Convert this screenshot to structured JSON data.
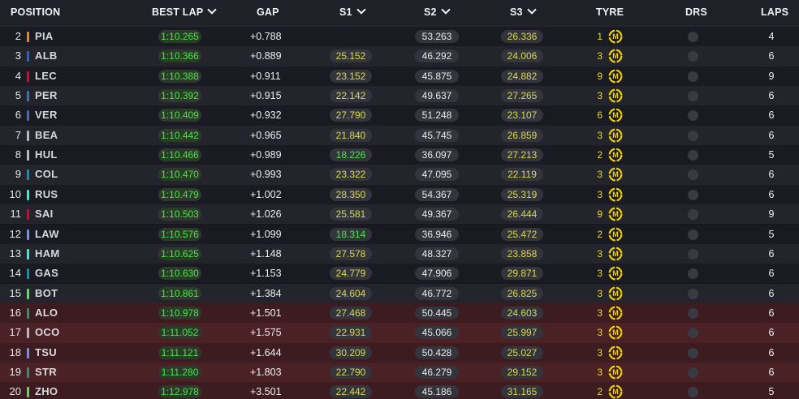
{
  "header": {
    "position": "POSITION",
    "best_lap": "BEST LAP",
    "gap": "GAP",
    "s1": "S1",
    "s2": "S2",
    "s3": "S3",
    "tyre": "TYRE",
    "drs": "DRS",
    "laps": "LAPS"
  },
  "tyre_compound_letter": "M",
  "colors": {
    "medium_tyre": "#f0d200",
    "personal_best": "#49e44a",
    "sector_yellow": "#d8d852",
    "eliminated_row": "#4a2226"
  },
  "rows": [
    {
      "pos": "2",
      "driver": "PIA",
      "team_color": "#ff8000",
      "best_lap": "1:10.265",
      "gap": "+0.788",
      "s1": "",
      "s2": "53.263",
      "s3": "26.336",
      "tyre_laps": "1",
      "laps": "4"
    },
    {
      "pos": "3",
      "driver": "ALB",
      "team_color": "#1868db",
      "best_lap": "1:10.366",
      "gap": "+0.889",
      "s1": "25.152",
      "s2": "46.292",
      "s3": "24.006",
      "tyre_laps": "3",
      "laps": "6"
    },
    {
      "pos": "4",
      "driver": "LEC",
      "team_color": "#e8002d",
      "best_lap": "1:10.388",
      "gap": "+0.911",
      "s1": "23.152",
      "s2": "45.875",
      "s3": "24.882",
      "tyre_laps": "9",
      "laps": "9"
    },
    {
      "pos": "5",
      "driver": "PER",
      "team_color": "#3671c6",
      "best_lap": "1:10.392",
      "gap": "+0.915",
      "s1": "22.142",
      "s2": "49.637",
      "s3": "27.265",
      "tyre_laps": "3",
      "laps": "6"
    },
    {
      "pos": "6",
      "driver": "VER",
      "team_color": "#3671c6",
      "best_lap": "1:10.409",
      "gap": "+0.932",
      "s1": "27.790",
      "s2": "51.248",
      "s3": "23.107",
      "tyre_laps": "6",
      "laps": "6"
    },
    {
      "pos": "7",
      "driver": "BEA",
      "team_color": "#b6babd",
      "best_lap": "1:10.442",
      "gap": "+0.965",
      "s1": "21.840",
      "s2": "45.745",
      "s3": "26.859",
      "tyre_laps": "3",
      "laps": "6"
    },
    {
      "pos": "8",
      "driver": "HUL",
      "team_color": "#b6babd",
      "best_lap": "1:10.466",
      "gap": "+0.989",
      "s1": "18.226",
      "s1_pb": true,
      "s2": "36.097",
      "s3": "27.213",
      "tyre_laps": "2",
      "laps": "5"
    },
    {
      "pos": "9",
      "driver": "COL",
      "team_color": "#0093cc",
      "best_lap": "1:10.470",
      "gap": "+0.993",
      "s1": "23.322",
      "s2": "47.095",
      "s3": "22.119",
      "tyre_laps": "3",
      "laps": "6"
    },
    {
      "pos": "10",
      "driver": "RUS",
      "team_color": "#27f4d2",
      "best_lap": "1:10.479",
      "gap": "+1.002",
      "s1": "28.350",
      "s2": "54.367",
      "s3": "25.319",
      "tyre_laps": "3",
      "laps": "6"
    },
    {
      "pos": "11",
      "driver": "SAI",
      "team_color": "#e8002d",
      "best_lap": "1:10.503",
      "gap": "+1.026",
      "s1": "25.581",
      "s2": "49.367",
      "s3": "26.444",
      "tyre_laps": "9",
      "laps": "9"
    },
    {
      "pos": "12",
      "driver": "LAW",
      "team_color": "#6692ff",
      "best_lap": "1:10.576",
      "gap": "+1.099",
      "s1": "18.314",
      "s1_pb": true,
      "s2": "36.946",
      "s3": "25.472",
      "tyre_laps": "2",
      "laps": "5"
    },
    {
      "pos": "13",
      "driver": "HAM",
      "team_color": "#27f4d2",
      "best_lap": "1:10.625",
      "gap": "+1.148",
      "s1": "27.578",
      "s2": "48.327",
      "s3": "23.858",
      "tyre_laps": "3",
      "laps": "6"
    },
    {
      "pos": "14",
      "driver": "GAS",
      "team_color": "#0093cc",
      "best_lap": "1:10.630",
      "gap": "+1.153",
      "s1": "24.779",
      "s2": "47.906",
      "s3": "29.871",
      "tyre_laps": "3",
      "laps": "6"
    },
    {
      "pos": "15",
      "driver": "BOT",
      "team_color": "#52e252",
      "best_lap": "1:10.861",
      "gap": "+1.384",
      "s1": "24.604",
      "s2": "46.772",
      "s3": "26.825",
      "tyre_laps": "3",
      "laps": "6"
    },
    {
      "pos": "16",
      "driver": "ALO",
      "team_color": "#229971",
      "best_lap": "1:10.978",
      "gap": "+1.501",
      "s1": "27.468",
      "s2": "50.445",
      "s3": "24.603",
      "tyre_laps": "3",
      "laps": "6",
      "eliminated": true
    },
    {
      "pos": "17",
      "driver": "OCO",
      "team_color": "#b6babd",
      "best_lap": "1:11.052",
      "gap": "+1.575",
      "s1": "22.931",
      "s2": "45.066",
      "s3": "25.997",
      "tyre_laps": "3",
      "laps": "6",
      "eliminated": true
    },
    {
      "pos": "18",
      "driver": "TSU",
      "team_color": "#6692ff",
      "best_lap": "1:11.121",
      "gap": "+1.644",
      "s1": "30.209",
      "s2": "50.428",
      "s3": "25.027",
      "tyre_laps": "3",
      "laps": "6",
      "eliminated": true
    },
    {
      "pos": "19",
      "driver": "STR",
      "team_color": "#229971",
      "best_lap": "1:11.280",
      "gap": "+1.803",
      "s1": "22.790",
      "s2": "46.279",
      "s3": "29.152",
      "tyre_laps": "3",
      "laps": "6",
      "eliminated": true
    },
    {
      "pos": "20",
      "driver": "ZHO",
      "team_color": "#52e252",
      "best_lap": "1:12.978",
      "gap": "+3.501",
      "s1": "22.442",
      "s2": "45.186",
      "s3": "31.165",
      "tyre_laps": "2",
      "laps": "5",
      "eliminated": true
    }
  ]
}
